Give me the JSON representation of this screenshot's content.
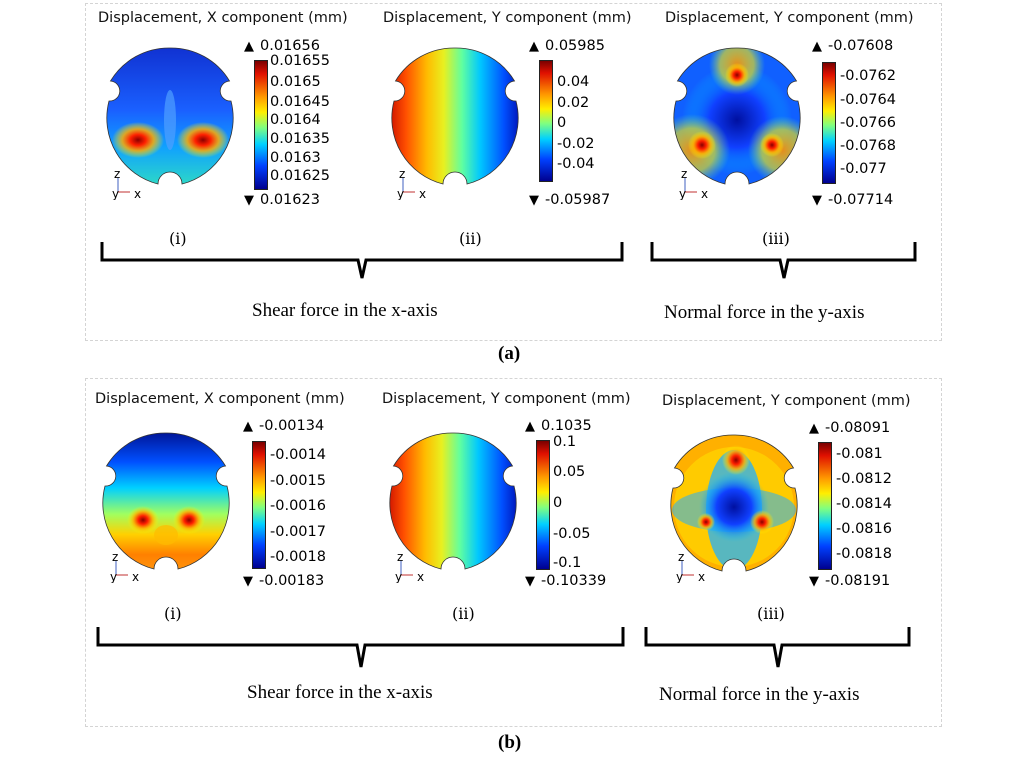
{
  "panel_a": {
    "label": "(a)",
    "plots": [
      {
        "title": "Displacement, X component (mm)",
        "sublabel": "(i)",
        "max": "0.01656",
        "min": "0.01623",
        "ticks": [
          "0.01655",
          "0.0165",
          "0.01645",
          "0.0164",
          "0.01635",
          "0.0163",
          "0.01625"
        ]
      },
      {
        "title": "Displacement, Y component (mm)",
        "sublabel": "(ii)",
        "max": "0.05985",
        "min": "-0.05987",
        "ticks": [
          "0.04",
          "0.02",
          "0",
          "-0.02",
          "-0.04"
        ]
      },
      {
        "title": "Displacement, Y component (mm)",
        "sublabel": "(iii)",
        "max": "-0.07608",
        "min": "-0.07714",
        "ticks": [
          "-0.0762",
          "-0.0764",
          "-0.0766",
          "-0.0768",
          "-0.077"
        ]
      }
    ],
    "captions": [
      "Shear force in the x-axis",
      "Normal force in the y-axis"
    ]
  },
  "panel_b": {
    "label": "(b)",
    "plots": [
      {
        "title": "Displacement, X component (mm)",
        "sublabel": "(i)",
        "max": "-0.00134",
        "min": "-0.00183",
        "ticks": [
          "-0.0014",
          "-0.0015",
          "-0.0016",
          "-0.0017",
          "-0.0018"
        ]
      },
      {
        "title": "Displacement, Y component (mm)",
        "sublabel": "(ii)",
        "max": "0.1035",
        "min": "-0.10339",
        "ticks": [
          "0.1",
          "0.05",
          "0",
          "-0.05",
          "-0.1"
        ]
      },
      {
        "title": "Displacement, Y component (mm)",
        "sublabel": "(iii)",
        "max": "-0.08091",
        "min": "-0.08191",
        "ticks": [
          "-0.081",
          "-0.0812",
          "-0.0814",
          "-0.0816",
          "-0.0818"
        ]
      }
    ],
    "captions": [
      "Shear force in the x-axis",
      "Normal force in the y-axis"
    ]
  },
  "axis_labels": {
    "z": "z",
    "y": "y",
    "x": "x"
  },
  "colors": {
    "jet_red": "#b00000",
    "jet_yellow": "#ffee00",
    "jet_cyan": "#00d0ff",
    "jet_blue": "#00008f"
  }
}
